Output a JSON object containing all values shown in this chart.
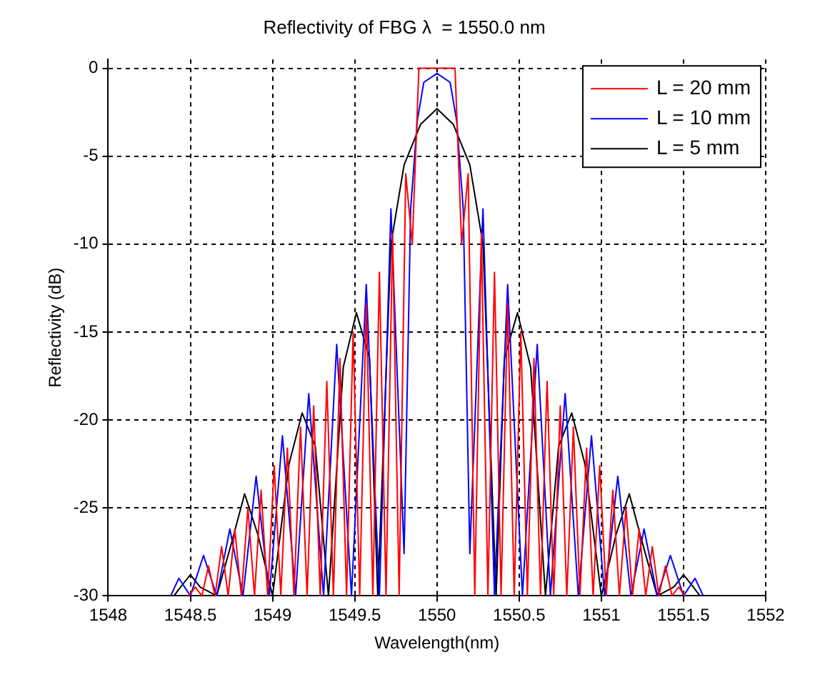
{
  "chart_data": {
    "type": "line",
    "title": "Reflectivity of FBG λ  = 1550.0 nm",
    "xlabel": "Wavelength(nm)",
    "ylabel": "Reflectivity (dB)",
    "xlim": [
      1548,
      1552
    ],
    "xticks": [
      1548,
      1548.5,
      1549,
      1549.5,
      1550,
      1550.5,
      1551,
      1551.5,
      1552
    ],
    "ylim": [
      -30,
      0.5
    ],
    "yticks": [
      -30,
      -25,
      -20,
      -15,
      -10,
      -5,
      0
    ],
    "grid": true,
    "legend": "top right",
    "marker": "none",
    "line_style": "solid",
    "series": [
      {
        "name": "L = 20 mm",
        "color": "#ff0000",
        "x": [
          1548.49,
          1548.53,
          1548.57,
          1548.61,
          1548.65,
          1548.69,
          1548.73,
          1548.77,
          1548.81,
          1548.85,
          1548.89,
          1548.93,
          1548.97,
          1549.01,
          1549.05,
          1549.09,
          1549.13,
          1549.17,
          1549.21,
          1549.25,
          1549.29,
          1549.33,
          1549.37,
          1549.41,
          1549.45,
          1549.49,
          1549.53,
          1549.57,
          1549.61,
          1549.65,
          1549.69,
          1549.73,
          1549.77,
          1549.81,
          1549.85,
          1549.89,
          1550,
          1550.11,
          1550.15,
          1550.19,
          1550.23,
          1550.27,
          1550.31,
          1550.35,
          1550.39,
          1550.43,
          1550.47,
          1550.51,
          1550.55,
          1550.59,
          1550.63,
          1550.67,
          1550.71,
          1550.75,
          1550.79,
          1550.83,
          1550.87,
          1550.91,
          1550.95,
          1550.99,
          1551.03,
          1551.07,
          1551.11,
          1551.15,
          1551.19,
          1551.23,
          1551.27,
          1551.31,
          1551.35,
          1551.39,
          1551.43,
          1551.47,
          1551.51
        ],
        "values": [
          -30,
          -29.5,
          -30,
          -28.3,
          -30,
          -27.2,
          -30,
          -26.2,
          -30,
          -25,
          -30,
          -24,
          -30,
          -22.6,
          -30,
          -21.6,
          -30,
          -20.4,
          -30,
          -19.2,
          -30,
          -17.8,
          -30,
          -16.5,
          -30,
          -15,
          -30,
          -13.4,
          -30,
          -11.6,
          -30,
          -9.4,
          -30,
          -6,
          -10,
          0,
          0,
          0,
          -10,
          -6,
          -30,
          -9.4,
          -30,
          -11.6,
          -30,
          -13.4,
          -30,
          -15,
          -30,
          -16.5,
          -30,
          -17.8,
          -30,
          -19.2,
          -30,
          -20.4,
          -30,
          -21.6,
          -30,
          -22.6,
          -30,
          -24,
          -30,
          -25,
          -30,
          -26.2,
          -30,
          -27.2,
          -30,
          -28.3,
          -30,
          -29.5,
          -30
        ]
      },
      {
        "name": "L = 10 mm",
        "color": "#0000ff",
        "x": [
          1548.38,
          1548.43,
          1548.5,
          1548.58,
          1548.66,
          1548.74,
          1548.82,
          1548.9,
          1548.98,
          1549.06,
          1549.14,
          1549.22,
          1549.31,
          1549.39,
          1549.48,
          1549.57,
          1549.65,
          1549.72,
          1549.8,
          1549.84,
          1549.88,
          1549.92,
          1550,
          1550.08,
          1550.12,
          1550.16,
          1550.2,
          1550.28,
          1550.35,
          1550.43,
          1550.52,
          1550.61,
          1550.69,
          1550.78,
          1550.86,
          1550.94,
          1551.02,
          1551.1,
          1551.18,
          1551.26,
          1551.34,
          1551.42,
          1551.5,
          1551.57,
          1551.62
        ],
        "values": [
          -30,
          -29,
          -30,
          -27.7,
          -30,
          -26.2,
          -30,
          -23.2,
          -30,
          -20.9,
          -30,
          -18.5,
          -30,
          -15.7,
          -30,
          -12.3,
          -30,
          -8,
          -27.6,
          -8,
          -3,
          -0.8,
          -0.3,
          -0.8,
          -3,
          -8,
          -27.6,
          -8,
          -30,
          -12.3,
          -30,
          -15.7,
          -30,
          -18.5,
          -30,
          -20.9,
          -30,
          -23.2,
          -30,
          -26.2,
          -30,
          -27.7,
          -30,
          -29,
          -30
        ]
      },
      {
        "name": "L = 5 mm",
        "color": "#000000",
        "x": [
          1548.4,
          1548.44,
          1548.5,
          1548.56,
          1548.66,
          1548.75,
          1548.83,
          1548.91,
          1549,
          1549.1,
          1549.18,
          1549.26,
          1549.34,
          1549.43,
          1549.51,
          1549.59,
          1549.64,
          1549.72,
          1549.8,
          1549.9,
          1550,
          1550.1,
          1550.2,
          1550.28,
          1550.36,
          1550.41,
          1550.49,
          1550.57,
          1550.66,
          1550.74,
          1550.82,
          1550.9,
          1551,
          1551.09,
          1551.17,
          1551.25,
          1551.34,
          1551.44,
          1551.5,
          1551.56,
          1551.6
        ],
        "values": [
          -30,
          -29.5,
          -28.8,
          -29.5,
          -30,
          -27,
          -24.2,
          -26.5,
          -30,
          -22.5,
          -19.6,
          -21.5,
          -30,
          -17,
          -13.9,
          -16.5,
          -30,
          -10,
          -5.5,
          -3.2,
          -2.3,
          -3.2,
          -5.5,
          -10,
          -30,
          -16.5,
          -13.9,
          -17,
          -30,
          -21.5,
          -19.6,
          -22.5,
          -30,
          -26.5,
          -24.2,
          -27,
          -30,
          -29.5,
          -28.8,
          -29.5,
          -30
        ]
      }
    ]
  }
}
